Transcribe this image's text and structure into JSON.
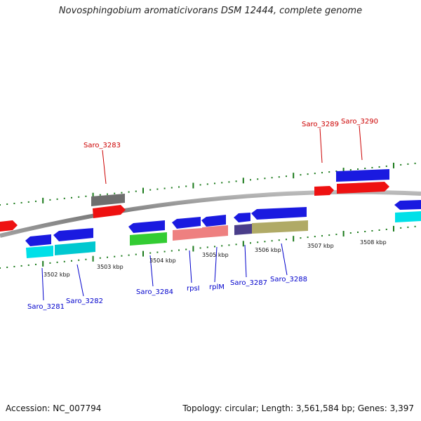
{
  "title": "Novosphingobium aromaticivorans DSM 12444, complete genome",
  "accession": "Accession: NC_007794",
  "topology": "Topology: circular; Length: 3,561,584 bp; Genes: 3,397",
  "tick_labels": [
    "3502 kbp",
    "3503 kbp",
    "3504 kbp",
    "3505 kbp",
    "3506 kbp",
    "3507 kbp",
    "3508 kbp"
  ],
  "genes": [
    {
      "name": "Saro_3281",
      "color": "#0000cc"
    },
    {
      "name": "Saro_3282",
      "color": "#0000cc"
    },
    {
      "name": "Saro_3283",
      "color": "#cc0000"
    },
    {
      "name": "Saro_3284",
      "color": "#0000cc"
    },
    {
      "name": "rpsI",
      "color": "#0000cc"
    },
    {
      "name": "rplM",
      "color": "#0000cc"
    },
    {
      "name": "Saro_3287",
      "color": "#0000cc"
    },
    {
      "name": "Saro_3288",
      "color": "#0000cc"
    },
    {
      "name": "Saro_3289",
      "color": "#cc0000"
    },
    {
      "name": "Saro_3290",
      "color": "#cc0000"
    }
  ],
  "colors": {
    "backbone": "#8a8a8a",
    "tick": "#1a7a1a",
    "strand_blue": "#1a1ae0",
    "strand_red": "#ee1111",
    "cyan": "#00e0e8",
    "gray": "#707070",
    "green": "#33cc33",
    "pink": "#ee8080",
    "olive": "#b0aa66",
    "navy": "#4a3e8a"
  }
}
